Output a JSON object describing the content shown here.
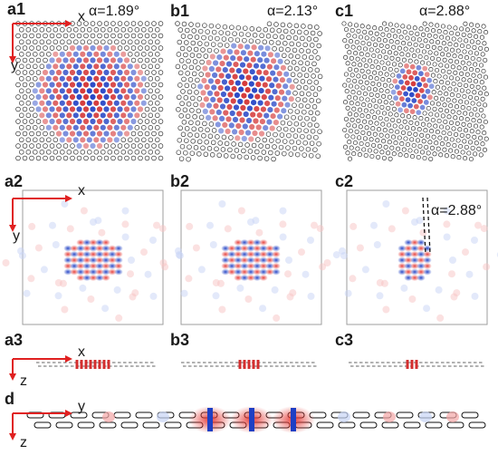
{
  "panels": {
    "a1": "a1",
    "b1": "b1",
    "c1": "c1",
    "a2": "a2",
    "b2": "b2",
    "c2": "c2",
    "a3": "a3",
    "b3": "b3",
    "c3": "c3",
    "d": "d"
  },
  "angles": {
    "a1": "α=1.89°",
    "b1": "α=2.13°",
    "c1": "α=2.88°",
    "c2": "α=2.88°"
  },
  "axes": {
    "x": "x",
    "y": "y",
    "z": "z"
  },
  "colors": {
    "positive": "#d32f2f",
    "negative": "#1e3fc4",
    "axis_arrow": "#e02020",
    "lattice": "#333333"
  }
}
